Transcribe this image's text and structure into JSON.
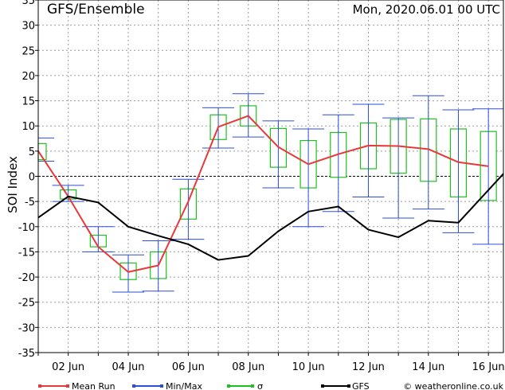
{
  "header": {
    "title": "GFS/Ensemble",
    "run_time": "Mon, 2020.06.01   00 UTC"
  },
  "legend": {
    "items": [
      {
        "label": "Mean Run",
        "color": "#e8393a",
        "marker": "line"
      },
      {
        "label": "Min/Max",
        "color": "#2b4fd8",
        "marker": "line"
      },
      {
        "label": "σ",
        "color": "#1ec21e",
        "marker": "line"
      },
      {
        "label": "GFS",
        "color": "#000000",
        "marker": "line"
      }
    ],
    "credit": "© weatheronline.co.uk"
  },
  "colors": {
    "mean": "#e8393a",
    "minmax": "#2b4fd8",
    "sigma": "#1ec21e",
    "gfs": "#000000",
    "grid": "#9a9a9a"
  },
  "chart_data": {
    "type": "line",
    "ylabel": "SOI Index",
    "ylim": [
      -35,
      35
    ],
    "y_ticks": [
      -35,
      -30,
      -25,
      -20,
      -15,
      -10,
      -5,
      0,
      5,
      10,
      15,
      20,
      25,
      30,
      35
    ],
    "x_day_range": [
      1,
      16.5
    ],
    "x_tick_labels": [
      {
        "day": 2,
        "label": "02 Jun"
      },
      {
        "day": 4,
        "label": "04 Jun"
      },
      {
        "day": 6,
        "label": "06 Jun"
      },
      {
        "day": 8,
        "label": "08 Jun"
      },
      {
        "day": 10,
        "label": "10 Jun"
      },
      {
        "day": 12,
        "label": "12 Jun"
      },
      {
        "day": 14,
        "label": "14 Jun"
      },
      {
        "day": 16,
        "label": "16 Jun"
      }
    ],
    "ensemble": [
      {
        "day": 1.0,
        "mean": 5.0,
        "min": 3.0,
        "max": 7.6,
        "sigma_low": 3.3,
        "sigma_high": 6.5
      },
      {
        "day": 2.0,
        "mean": -4.0,
        "min": -5.0,
        "max": -1.8,
        "sigma_low": -4.5,
        "sigma_high": -2.7
      },
      {
        "day": 3.0,
        "mean": -14.0,
        "min": -15.0,
        "max": -10.0,
        "sigma_low": -14.0,
        "sigma_high": -11.7
      },
      {
        "day": 4.0,
        "mean": -19.0,
        "min": -23.0,
        "max": -15.6,
        "sigma_low": -20.5,
        "sigma_high": -17.2
      },
      {
        "day": 5.0,
        "mean": -17.7,
        "min": -22.8,
        "max": -12.8,
        "sigma_low": -20.3,
        "sigma_high": -15.0
      },
      {
        "day": 6.0,
        "mean": -5.0,
        "min": -12.5,
        "max": -0.6,
        "sigma_low": -8.5,
        "sigma_high": -2.5
      },
      {
        "day": 7.0,
        "mean": 9.8,
        "min": 5.6,
        "max": 13.6,
        "sigma_low": 7.3,
        "sigma_high": 12.2
      },
      {
        "day": 8.0,
        "mean": 12.0,
        "min": 7.8,
        "max": 16.4,
        "sigma_low": 10.0,
        "sigma_high": 14.0
      },
      {
        "day": 9.0,
        "mean": 5.8,
        "min": -2.3,
        "max": 11.0,
        "sigma_low": 1.8,
        "sigma_high": 9.5
      },
      {
        "day": 10.0,
        "mean": 2.4,
        "min": -10.0,
        "max": 9.4,
        "sigma_low": -2.3,
        "sigma_high": 7.1
      },
      {
        "day": 11.0,
        "mean": 4.4,
        "min": -7.0,
        "max": 12.2,
        "sigma_low": -0.2,
        "sigma_high": 8.7
      },
      {
        "day": 12.0,
        "mean": 6.1,
        "min": -4.1,
        "max": 14.3,
        "sigma_low": 1.5,
        "sigma_high": 10.6
      },
      {
        "day": 13.0,
        "mean": 6.0,
        "min": -8.3,
        "max": 11.6,
        "sigma_low": 0.6,
        "sigma_high": 11.3
      },
      {
        "day": 14.0,
        "mean": 5.4,
        "min": -6.5,
        "max": 16.0,
        "sigma_low": -1.0,
        "sigma_high": 11.4
      },
      {
        "day": 15.0,
        "mean": 2.8,
        "min": -11.2,
        "max": 13.2,
        "sigma_low": -4.1,
        "sigma_high": 9.4
      },
      {
        "day": 16.0,
        "mean": 2.0,
        "min": -13.5,
        "max": 13.4,
        "sigma_low": -4.8,
        "sigma_high": 8.9
      }
    ],
    "gfs": [
      {
        "day": 1.0,
        "value": -8.2
      },
      {
        "day": 2.0,
        "value": -4.0
      },
      {
        "day": 3.0,
        "value": -5.2
      },
      {
        "day": 4.0,
        "value": -10.0
      },
      {
        "day": 5.0,
        "value": -11.8
      },
      {
        "day": 6.0,
        "value": -13.5
      },
      {
        "day": 7.0,
        "value": -16.6
      },
      {
        "day": 8.0,
        "value": -15.8
      },
      {
        "day": 9.0,
        "value": -10.9
      },
      {
        "day": 10.0,
        "value": -7.0
      },
      {
        "day": 11.0,
        "value": -6.0
      },
      {
        "day": 12.0,
        "value": -10.6
      },
      {
        "day": 13.0,
        "value": -12.1
      },
      {
        "day": 14.0,
        "value": -8.8
      },
      {
        "day": 15.0,
        "value": -9.2
      },
      {
        "day": 16.5,
        "value": 0.5
      }
    ],
    "grid": true,
    "zero_line": "dashed"
  }
}
